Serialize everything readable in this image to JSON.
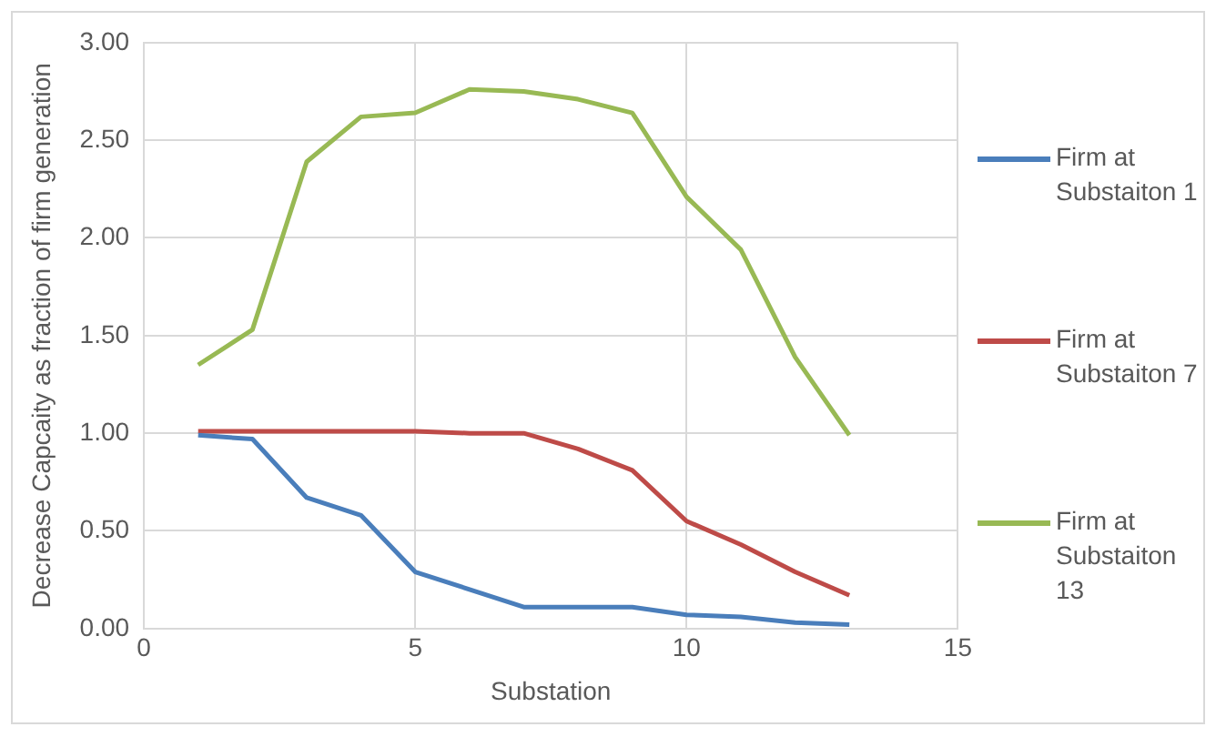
{
  "chart_data": {
    "type": "line",
    "xlabel": "Substation",
    "ylabel": "Decrease Capcaity as fraction of firm generation",
    "x": [
      1,
      2,
      3,
      4,
      5,
      6,
      7,
      8,
      9,
      10,
      11,
      12,
      13
    ],
    "series": [
      {
        "name": "Firm at Substaiton 1",
        "color": "#4a7ebb",
        "values": [
          0.99,
          0.97,
          0.67,
          0.58,
          0.29,
          0.2,
          0.11,
          0.11,
          0.11,
          0.07,
          0.06,
          0.03,
          0.02
        ]
      },
      {
        "name": "Firm at Substaiton 7",
        "color": "#be4b48",
        "values": [
          1.01,
          1.01,
          1.01,
          1.01,
          1.01,
          1.0,
          1.0,
          0.92,
          0.81,
          0.55,
          0.43,
          0.29,
          0.17
        ]
      },
      {
        "name": "Firm at Substaiton 13",
        "color": "#98b954",
        "values": [
          1.35,
          1.53,
          2.39,
          2.62,
          2.64,
          2.76,
          2.75,
          2.71,
          2.64,
          2.21,
          1.94,
          1.39,
          0.99
        ]
      }
    ],
    "xlim": [
      0,
      15
    ],
    "xticks": [
      0,
      5,
      10,
      15
    ],
    "ylim": [
      0,
      3
    ],
    "yticks": [
      {
        "value": 0,
        "label": "0.00"
      },
      {
        "value": 0.5,
        "label": "0.50"
      },
      {
        "value": 1,
        "label": "1.00"
      },
      {
        "value": 1.5,
        "label": "1.50"
      },
      {
        "value": 2,
        "label": "2.00"
      },
      {
        "value": 2.5,
        "label": "2.50"
      },
      {
        "value": 3,
        "label": "3.00"
      }
    ],
    "grid": true,
    "legend": "right",
    "marker": "none",
    "line_style": "solid"
  }
}
